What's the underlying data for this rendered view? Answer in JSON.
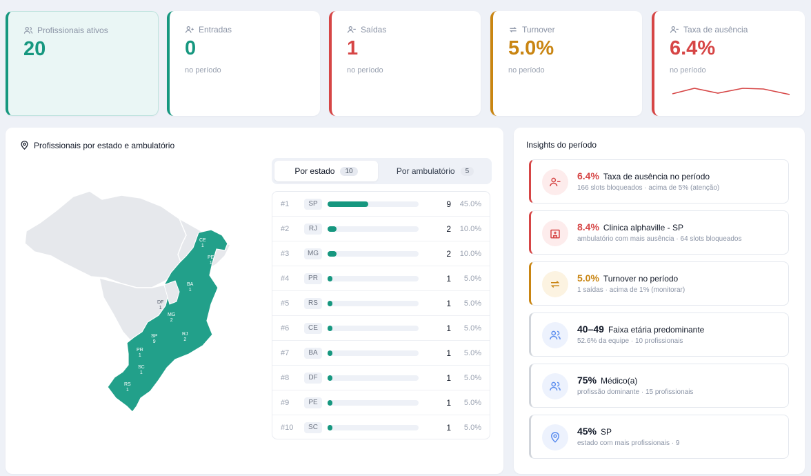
{
  "kpis": [
    {
      "label": "Profissionais ativos",
      "value": "20",
      "sub": "",
      "icon": "users-icon"
    },
    {
      "label": "Entradas",
      "value": "0",
      "sub": "no período",
      "icon": "user-plus-icon"
    },
    {
      "label": "Saídas",
      "value": "1",
      "sub": "no período",
      "icon": "user-minus-icon"
    },
    {
      "label": "Turnover",
      "value": "5.0%",
      "sub": "no período",
      "icon": "repeat-icon"
    },
    {
      "label": "Taxa de ausência",
      "value": "6.4%",
      "sub": "no período",
      "icon": "user-minus-icon"
    }
  ],
  "colors": {
    "teal": "#16977f",
    "red": "#d64545",
    "orange": "#c98512",
    "blue": "#5b8def"
  },
  "map_panel": {
    "title": "Profissionais por estado e ambulatório",
    "tabs": [
      {
        "label": "Por estado",
        "count": "10"
      },
      {
        "label": "Por ambulatório",
        "count": "5"
      }
    ],
    "map_labels": [
      {
        "uf": "CE",
        "n": "1"
      },
      {
        "uf": "PE",
        "n": "1"
      },
      {
        "uf": "BA",
        "n": "1"
      },
      {
        "uf": "DF",
        "n": "1"
      },
      {
        "uf": "MG",
        "n": "2"
      },
      {
        "uf": "SP",
        "n": "9"
      },
      {
        "uf": "RJ",
        "n": "2"
      },
      {
        "uf": "PR",
        "n": "1"
      },
      {
        "uf": "SC",
        "n": "1"
      },
      {
        "uf": "RS",
        "n": "1"
      }
    ],
    "ranking": [
      {
        "rank": "#1",
        "uf": "SP",
        "count": "9",
        "pct": "45.0%",
        "share": 0.45
      },
      {
        "rank": "#2",
        "uf": "RJ",
        "count": "2",
        "pct": "10.0%",
        "share": 0.1
      },
      {
        "rank": "#3",
        "uf": "MG",
        "count": "2",
        "pct": "10.0%",
        "share": 0.1
      },
      {
        "rank": "#4",
        "uf": "PR",
        "count": "1",
        "pct": "5.0%",
        "share": 0.05
      },
      {
        "rank": "#5",
        "uf": "RS",
        "count": "1",
        "pct": "5.0%",
        "share": 0.05
      },
      {
        "rank": "#6",
        "uf": "CE",
        "count": "1",
        "pct": "5.0%",
        "share": 0.05
      },
      {
        "rank": "#7",
        "uf": "BA",
        "count": "1",
        "pct": "5.0%",
        "share": 0.05
      },
      {
        "rank": "#8",
        "uf": "DF",
        "count": "1",
        "pct": "5.0%",
        "share": 0.05
      },
      {
        "rank": "#9",
        "uf": "PE",
        "count": "1",
        "pct": "5.0%",
        "share": 0.05
      },
      {
        "rank": "#10",
        "uf": "SC",
        "count": "1",
        "pct": "5.0%",
        "share": 0.05
      }
    ]
  },
  "insights": {
    "title": "Insights do período",
    "items": [
      {
        "value": "6.4%",
        "title": "Taxa de ausência no período",
        "sub": "166 slots bloqueados · acima de 5% (atenção)",
        "tone": "red",
        "icon": "user-minus-icon"
      },
      {
        "value": "8.4%",
        "title": "Clinica alphaville - SP",
        "sub": "ambulatório com mais ausência · 64 slots bloqueados",
        "tone": "red",
        "icon": "hospital-icon"
      },
      {
        "value": "5.0%",
        "title": "Turnover no período",
        "sub": "1 saídas · acima de 1% (monitorar)",
        "tone": "orange",
        "icon": "repeat-icon"
      },
      {
        "value": "40–49",
        "title": "Faixa etária predominante",
        "sub": "52.6% da equipe · 10 profissionais",
        "tone": "neutral",
        "icon": "users-icon"
      },
      {
        "value": "75%",
        "title": "Médico(a)",
        "sub": "profissão dominante · 15 profissionais",
        "tone": "neutral",
        "icon": "users-icon"
      },
      {
        "value": "45%",
        "title": "SP",
        "sub": "estado com mais profissionais · 9",
        "tone": "neutral",
        "icon": "map-pin-icon"
      }
    ]
  }
}
